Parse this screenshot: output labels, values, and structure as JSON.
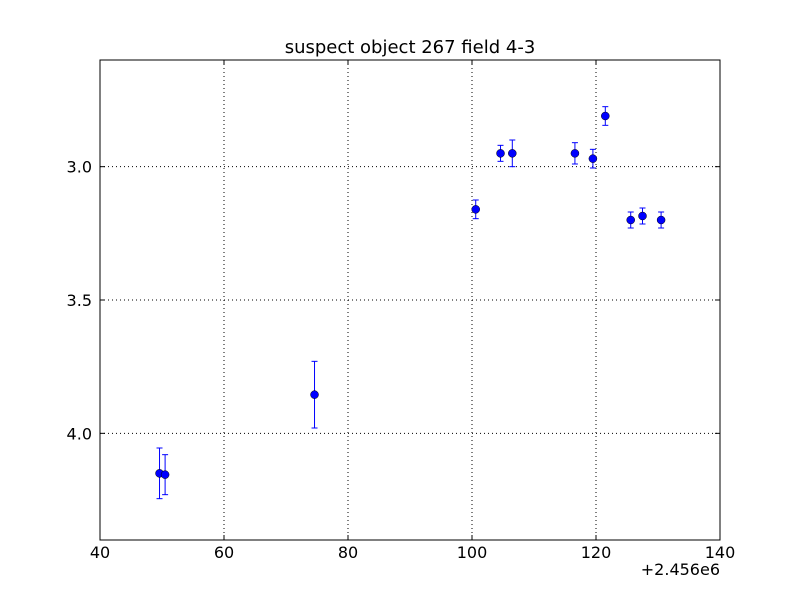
{
  "chart_data": {
    "type": "scatter",
    "title": "suspect object 267 field 4-3",
    "xlabel": "",
    "ylabel": "",
    "x_offset_label": "+2.456e6",
    "x_offset": 2456000,
    "xlim": [
      2456040,
      2456140
    ],
    "ylim": [
      4.4,
      2.6
    ],
    "y_inverted": true,
    "grid": true,
    "x_ticks": [
      2456040,
      2456060,
      2456080,
      2456100,
      2456120,
      2456140
    ],
    "x_tick_labels": [
      "40",
      "60",
      "80",
      "100",
      "120",
      "140"
    ],
    "y_ticks": [
      3.0,
      3.5,
      4.0
    ],
    "y_tick_labels": [
      "3.0",
      "3.5",
      "4.0"
    ],
    "marker_color": "#0000ff",
    "series": [
      {
        "x": [
          2456049.6,
          2456050.5,
          2456074.6,
          2456100.6,
          2456104.6,
          2456106.5,
          2456116.6,
          2456119.5,
          2456121.5,
          2456125.6,
          2456127.5,
          2456130.5
        ],
        "y": [
          4.15,
          4.155,
          3.855,
          3.16,
          2.95,
          2.95,
          2.95,
          2.97,
          2.81,
          3.2,
          3.185,
          3.2
        ],
        "yerr": [
          0.095,
          0.075,
          0.125,
          0.035,
          0.03,
          0.05,
          0.04,
          0.035,
          0.035,
          0.03,
          0.03,
          0.03
        ]
      }
    ]
  }
}
